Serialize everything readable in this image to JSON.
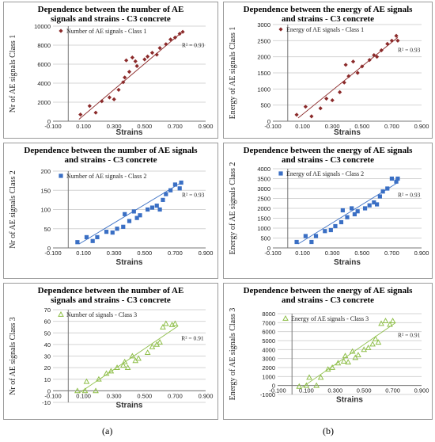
{
  "captions": [
    "(a)",
    "(b)"
  ],
  "chart_data": [
    {
      "id": "c1",
      "type": "scatter",
      "title": "Dependence between the number of AE\nsignals and strains - C3 concrete",
      "xlabel": "Strains",
      "ylabel": "Nr of AE signals Class 1",
      "legend": "Number of AE signals - Class 1",
      "legend_placement": "top-left",
      "r2": "R² = 0.93",
      "marker": "diamond",
      "color": "#8b2a2a",
      "xlim": [
        -0.1,
        0.9
      ],
      "ylim": [
        0,
        10000
      ],
      "xticks": [
        "-0.100",
        "0.100",
        "0.300",
        "0.500",
        "0.700",
        "0.900"
      ],
      "yticks": [
        "0",
        "2000",
        "4000",
        "6000",
        "8000",
        "10000"
      ],
      "trend": [
        [
          0.07,
          200
        ],
        [
          0.74,
          9300
        ]
      ],
      "points": [
        [
          0.08,
          700
        ],
        [
          0.14,
          1600
        ],
        [
          0.18,
          900
        ],
        [
          0.22,
          2100
        ],
        [
          0.27,
          2500
        ],
        [
          0.3,
          2300
        ],
        [
          0.33,
          3300
        ],
        [
          0.36,
          4100
        ],
        [
          0.37,
          4600
        ],
        [
          0.38,
          6400
        ],
        [
          0.4,
          5200
        ],
        [
          0.42,
          6700
        ],
        [
          0.44,
          6300
        ],
        [
          0.45,
          5800
        ],
        [
          0.5,
          6500
        ],
        [
          0.52,
          6800
        ],
        [
          0.55,
          7200
        ],
        [
          0.58,
          7000
        ],
        [
          0.6,
          7700
        ],
        [
          0.64,
          8100
        ],
        [
          0.67,
          8600
        ],
        [
          0.7,
          8800
        ],
        [
          0.73,
          9200
        ],
        [
          0.75,
          9400
        ]
      ]
    },
    {
      "id": "c2",
      "type": "scatter",
      "title": "Dependence between the energy of AE signals\nand strains - C3 concrete",
      "xlabel": "Strains",
      "ylabel": "Energy of AE signals Class 1",
      "legend": "Energy of AE signals - Class 1",
      "legend_placement": "top-left",
      "r2": "R² = 0.93",
      "marker": "diamond",
      "color": "#8b2a2a",
      "xlim": [
        -0.1,
        0.9
      ],
      "ylim": [
        0,
        3000
      ],
      "xticks": [
        "-0.100",
        "0.100",
        "0.300",
        "0.500",
        "0.700",
        "0.900"
      ],
      "yticks": [
        "0",
        "500",
        "1000",
        "1500",
        "2000",
        "2500",
        "3000"
      ],
      "trend": [
        [
          0.07,
          100
        ],
        [
          0.74,
          2600
        ]
      ],
      "points": [
        [
          0.06,
          200
        ],
        [
          0.12,
          450
        ],
        [
          0.16,
          150
        ],
        [
          0.22,
          400
        ],
        [
          0.26,
          700
        ],
        [
          0.3,
          650
        ],
        [
          0.35,
          900
        ],
        [
          0.38,
          1200
        ],
        [
          0.39,
          1750
        ],
        [
          0.41,
          1400
        ],
        [
          0.44,
          1850
        ],
        [
          0.47,
          1500
        ],
        [
          0.5,
          1700
        ],
        [
          0.55,
          1900
        ],
        [
          0.58,
          2050
        ],
        [
          0.6,
          2000
        ],
        [
          0.63,
          2200
        ],
        [
          0.67,
          2400
        ],
        [
          0.7,
          2500
        ],
        [
          0.73,
          2650
        ],
        [
          0.74,
          2500
        ]
      ]
    },
    {
      "id": "c3",
      "type": "scatter",
      "title": "Dependence between the number of AE signals\nand strains - C3 concrete",
      "xlabel": "Strains",
      "ylabel": "Nr of AE signals Class 2",
      "legend": "Number of AE signals - Class 2",
      "legend_placement": "top-left",
      "r2": "R² = 0.93",
      "marker": "square",
      "color": "#3a6fc4",
      "xlim": [
        -0.1,
        0.9
      ],
      "ylim": [
        0,
        200
      ],
      "xticks": [
        "-0.100",
        "0.100",
        "0.300",
        "0.500",
        "0.700",
        "0.900"
      ],
      "yticks": [
        "0",
        "50",
        "100",
        "150",
        "200"
      ],
      "trend": [
        [
          0.07,
          10
        ],
        [
          0.74,
          170
        ]
      ],
      "points": [
        [
          0.06,
          15
        ],
        [
          0.12,
          28
        ],
        [
          0.16,
          18
        ],
        [
          0.19,
          28
        ],
        [
          0.25,
          42
        ],
        [
          0.29,
          40
        ],
        [
          0.32,
          50
        ],
        [
          0.36,
          55
        ],
        [
          0.37,
          88
        ],
        [
          0.4,
          70
        ],
        [
          0.43,
          95
        ],
        [
          0.45,
          78
        ],
        [
          0.47,
          85
        ],
        [
          0.52,
          100
        ],
        [
          0.55,
          105
        ],
        [
          0.58,
          110
        ],
        [
          0.6,
          100
        ],
        [
          0.62,
          125
        ],
        [
          0.64,
          140
        ],
        [
          0.67,
          150
        ],
        [
          0.7,
          165
        ],
        [
          0.73,
          155
        ],
        [
          0.74,
          170
        ]
      ]
    },
    {
      "id": "c4",
      "type": "scatter",
      "title": "Dependence between the energy of AE signals\nand strains - C3 concrete",
      "xlabel": "Strains",
      "ylabel": "Energy of AE signals Class 2",
      "legend": "Energy of AE signals - Class 2",
      "legend_placement": "top-left",
      "r2": "R² = 0.93",
      "marker": "square",
      "color": "#3a6fc4",
      "xlim": [
        -0.1,
        0.9
      ],
      "ylim": [
        0,
        4000
      ],
      "xticks": [
        "-0.100",
        "0.100",
        "0.300",
        "0.500",
        "0.700",
        "0.900"
      ],
      "yticks": [
        "0",
        "500",
        "1000",
        "1500",
        "2000",
        "2500",
        "3000",
        "3500",
        "4000"
      ],
      "trend": [
        [
          0.07,
          200
        ],
        [
          0.74,
          3300
        ]
      ],
      "points": [
        [
          0.06,
          300
        ],
        [
          0.12,
          600
        ],
        [
          0.16,
          300
        ],
        [
          0.19,
          600
        ],
        [
          0.25,
          850
        ],
        [
          0.29,
          900
        ],
        [
          0.32,
          1100
        ],
        [
          0.36,
          1300
        ],
        [
          0.37,
          1900
        ],
        [
          0.4,
          1550
        ],
        [
          0.43,
          2000
        ],
        [
          0.45,
          1700
        ],
        [
          0.47,
          1850
        ],
        [
          0.52,
          2000
        ],
        [
          0.55,
          2150
        ],
        [
          0.58,
          2300
        ],
        [
          0.6,
          2200
        ],
        [
          0.62,
          2600
        ],
        [
          0.64,
          2850
        ],
        [
          0.67,
          3000
        ],
        [
          0.7,
          3500
        ],
        [
          0.73,
          3350
        ],
        [
          0.74,
          3500
        ]
      ]
    },
    {
      "id": "c5",
      "type": "scatter",
      "title": "Dependence between the number of AE\nsignals and strains - C3 concrete",
      "xlabel": "Strains",
      "ylabel": "Nr of AE signals Class 3",
      "legend": "Number of signals - Class 3",
      "legend_placement": "top-left",
      "r2": "R² = 0.91",
      "marker": "triangle",
      "color": "#8fbf4a",
      "xlim": [
        -0.1,
        0.9
      ],
      "ylim": [
        -10,
        70
      ],
      "xticks": [
        "-0.100",
        "0.100",
        "0.300",
        "0.500",
        "0.700",
        "0.900"
      ],
      "yticks": [
        "-10",
        "0",
        "10",
        "20",
        "30",
        "40",
        "50",
        "60",
        "70"
      ],
      "trend": [
        [
          0.07,
          -2
        ],
        [
          0.72,
          56
        ]
      ],
      "points": [
        [
          0.06,
          0
        ],
        [
          0.11,
          0
        ],
        [
          0.12,
          8
        ],
        [
          0.18,
          0
        ],
        [
          0.2,
          10
        ],
        [
          0.25,
          15
        ],
        [
          0.28,
          17
        ],
        [
          0.32,
          20
        ],
        [
          0.36,
          22
        ],
        [
          0.37,
          25
        ],
        [
          0.39,
          20
        ],
        [
          0.42,
          30
        ],
        [
          0.44,
          26
        ],
        [
          0.46,
          28
        ],
        [
          0.52,
          33
        ],
        [
          0.55,
          38
        ],
        [
          0.58,
          40
        ],
        [
          0.6,
          42
        ],
        [
          0.62,
          55
        ],
        [
          0.64,
          58
        ],
        [
          0.68,
          57
        ],
        [
          0.7,
          58
        ]
      ]
    },
    {
      "id": "c6",
      "type": "scatter",
      "title": "Dependence between the energy of AE signals\nand strains - C3 concrete",
      "xlabel": "Strains",
      "ylabel": "Energy of AE signals Class 3",
      "legend": "Energy of AE signals - Class 3",
      "legend_placement": "top-left",
      "r2": "R² = 0.91",
      "marker": "triangle",
      "color": "#8fbf4a",
      "xlim": [
        -0.1,
        0.9
      ],
      "ylim": [
        -1000,
        8000
      ],
      "xticks": [
        "-0.100",
        "0.100",
        "0.300",
        "0.500",
        "0.700",
        "0.900"
      ],
      "yticks": [
        "-1000",
        "0",
        "1000",
        "2000",
        "3000",
        "4000",
        "5000",
        "6000",
        "7000",
        "8000"
      ],
      "trend": [
        [
          0.07,
          -200
        ],
        [
          0.72,
          7000
        ]
      ],
      "points": [
        [
          0.05,
          -100
        ],
        [
          0.1,
          0
        ],
        [
          0.12,
          900
        ],
        [
          0.17,
          0
        ],
        [
          0.2,
          900
        ],
        [
          0.25,
          1800
        ],
        [
          0.28,
          2000
        ],
        [
          0.32,
          2500
        ],
        [
          0.36,
          2700
        ],
        [
          0.37,
          3300
        ],
        [
          0.39,
          2600
        ],
        [
          0.42,
          3800
        ],
        [
          0.44,
          3100
        ],
        [
          0.46,
          3400
        ],
        [
          0.5,
          4000
        ],
        [
          0.53,
          4200
        ],
        [
          0.56,
          4600
        ],
        [
          0.58,
          5200
        ],
        [
          0.6,
          4800
        ],
        [
          0.62,
          6900
        ],
        [
          0.65,
          7200
        ],
        [
          0.68,
          6800
        ],
        [
          0.7,
          7200
        ]
      ]
    }
  ]
}
